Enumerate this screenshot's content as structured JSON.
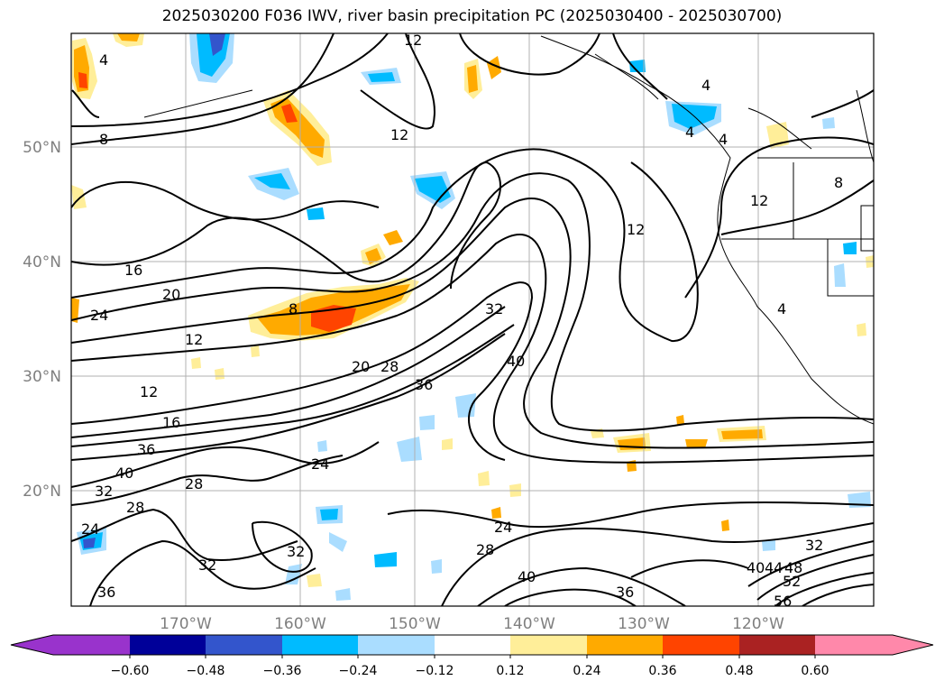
{
  "title": "2025030200 F036 IWV, river basin precipitation PC (2025030400 - 2025030700)",
  "map": {
    "lat_labels": [
      "50°N",
      "40°N",
      "30°N",
      "20°N"
    ],
    "lon_labels": [
      "170°W",
      "160°W",
      "150°W",
      "140°W",
      "130°W",
      "120°W"
    ],
    "contour_labels": [
      "4",
      "12",
      "8",
      "12",
      "12",
      "8",
      "16",
      "20",
      "24",
      "12",
      "8",
      "12",
      "20",
      "32",
      "28",
      "36",
      "40",
      "12",
      "16",
      "36",
      "40",
      "28",
      "24",
      "32",
      "28",
      "24",
      "24",
      "28",
      "32",
      "32",
      "36",
      "40",
      "36",
      "32",
      "40",
      "44",
      "48",
      "52",
      "56",
      "4",
      "4",
      "4",
      "4"
    ]
  },
  "colorbar": {
    "ticks": [
      "−0.60",
      "−0.48",
      "−0.36",
      "−0.24",
      "−0.12",
      "0.12",
      "0.24",
      "0.36",
      "0.48",
      "0.60"
    ],
    "colors": [
      "#9933cc",
      "#000099",
      "#3355cc",
      "#00bbff",
      "#aaddff",
      "#ffffff",
      "#ffee99",
      "#ffaa00",
      "#ff4400",
      "#aa2222",
      "#ff88aa"
    ]
  }
}
